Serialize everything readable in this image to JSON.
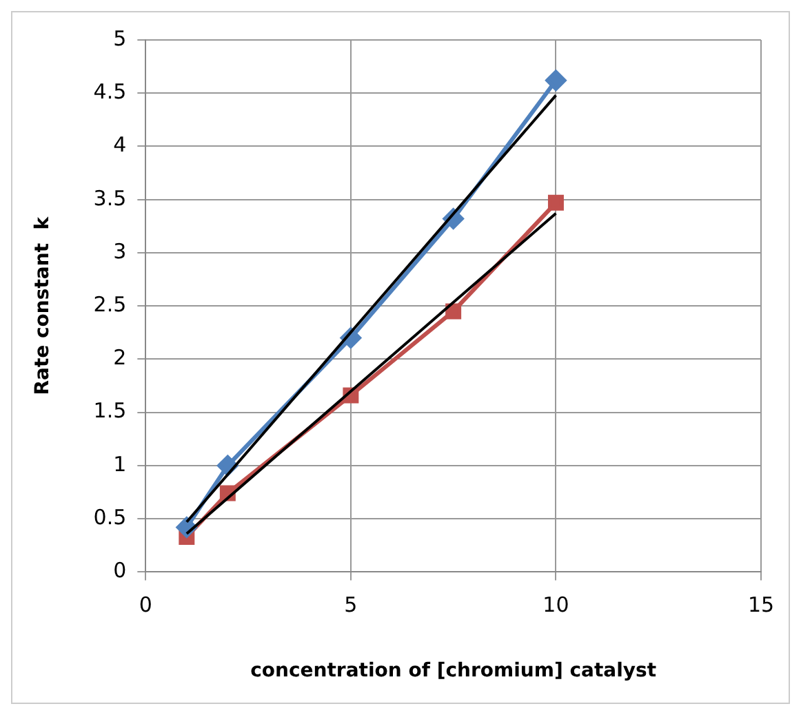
{
  "chart_data": {
    "type": "line",
    "xlabel": "concentration of [chromium] catalyst",
    "ylabel": "Rate constant  k",
    "xlim": [
      0,
      15
    ],
    "xticks": [
      0,
      5,
      10,
      15
    ],
    "ylim": [
      0,
      5
    ],
    "yticks": [
      0,
      0.5,
      1,
      1.5,
      2,
      2.5,
      3,
      3.5,
      4,
      4.5,
      5
    ],
    "grid": true,
    "legend": false,
    "series": [
      {
        "color": "#4f81bd",
        "marker": "diamond",
        "x": [
          1,
          2,
          5,
          7.5,
          10
        ],
        "values": [
          0.42,
          1.0,
          2.2,
          3.32,
          4.62
        ]
      },
      {
        "color": "#c0504d",
        "marker": "square",
        "x": [
          1,
          2,
          5,
          7.5,
          10
        ],
        "values": [
          0.33,
          0.74,
          1.66,
          2.45,
          3.47
        ]
      },
      {
        "color": "#000000",
        "marker": "none",
        "x": [
          1,
          10
        ],
        "values": [
          0.47,
          4.48
        ]
      },
      {
        "color": "#000000",
        "marker": "none",
        "x": [
          1,
          10
        ],
        "values": [
          0.36,
          3.37
        ]
      }
    ]
  }
}
